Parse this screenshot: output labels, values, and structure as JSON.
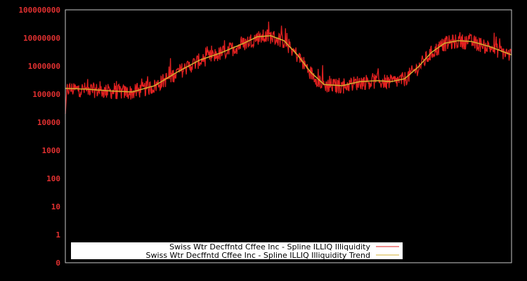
{
  "chart_data": {
    "type": "line",
    "title": "",
    "xlabel": "",
    "ylabel": "",
    "yscale": "log",
    "y_tick_labels": [
      "100000000",
      "10000000",
      "1000000",
      "100000",
      "10000",
      "1000",
      "100",
      "10",
      "1",
      "0"
    ],
    "ylim": [
      0,
      100000000
    ],
    "grid": false,
    "legend_position": "lower center",
    "background": "#000000",
    "series": [
      {
        "name": "Swiss Wtr Decffntd Cffee Inc - Spline ILLIQ Illiquidity",
        "color": "#e02020",
        "description": "noisy daily series, log scale",
        "approx_points": [
          [
            0.0,
            20000
          ],
          [
            0.01,
            150000
          ],
          [
            0.03,
            180000
          ],
          [
            0.05,
            120000
          ],
          [
            0.08,
            140000
          ],
          [
            0.11,
            80000
          ],
          [
            0.13,
            90000
          ],
          [
            0.15,
            100000
          ],
          [
            0.18,
            180000
          ],
          [
            0.21,
            300000
          ],
          [
            0.24,
            600000
          ],
          [
            0.27,
            1200000
          ],
          [
            0.3,
            2000000
          ],
          [
            0.33,
            2500000
          ],
          [
            0.36,
            3000000
          ],
          [
            0.39,
            5000000
          ],
          [
            0.42,
            10000000
          ],
          [
            0.44,
            12000000
          ],
          [
            0.46,
            8000000
          ],
          [
            0.48,
            7000000
          ],
          [
            0.5,
            4000000
          ],
          [
            0.52,
            2000000
          ],
          [
            0.54,
            900000
          ],
          [
            0.56,
            250000
          ],
          [
            0.58,
            150000
          ],
          [
            0.61,
            200000
          ],
          [
            0.64,
            250000
          ],
          [
            0.67,
            300000
          ],
          [
            0.7,
            250000
          ],
          [
            0.73,
            250000
          ],
          [
            0.76,
            500000
          ],
          [
            0.79,
            1000000
          ],
          [
            0.82,
            3000000
          ],
          [
            0.84,
            8000000
          ],
          [
            0.86,
            9000000
          ],
          [
            0.89,
            8000000
          ],
          [
            0.92,
            6000000
          ],
          [
            0.95,
            4000000
          ],
          [
            0.98,
            2500000
          ],
          [
            1.0,
            4000000
          ]
        ]
      },
      {
        "name": "Swiss Wtr Decffntd Cffee Inc - Spline ILLIQ Illiquidity Trend",
        "color": "#d4b030",
        "description": "smooth spline trend",
        "approx_points": [
          [
            0.0,
            160000
          ],
          [
            0.05,
            150000
          ],
          [
            0.1,
            130000
          ],
          [
            0.15,
            120000
          ],
          [
            0.2,
            200000
          ],
          [
            0.25,
            600000
          ],
          [
            0.3,
            1600000
          ],
          [
            0.35,
            3000000
          ],
          [
            0.4,
            6500000
          ],
          [
            0.43,
            11000000
          ],
          [
            0.46,
            12000000
          ],
          [
            0.49,
            8000000
          ],
          [
            0.52,
            2500000
          ],
          [
            0.55,
            600000
          ],
          [
            0.58,
            220000
          ],
          [
            0.62,
            200000
          ],
          [
            0.66,
            280000
          ],
          [
            0.7,
            300000
          ],
          [
            0.73,
            280000
          ],
          [
            0.76,
            350000
          ],
          [
            0.79,
            900000
          ],
          [
            0.82,
            3000000
          ],
          [
            0.85,
            6500000
          ],
          [
            0.88,
            8000000
          ],
          [
            0.91,
            7500000
          ],
          [
            0.95,
            5000000
          ],
          [
            1.0,
            2500000
          ]
        ]
      }
    ]
  },
  "legend": {
    "items": [
      {
        "label": "Swiss Wtr Decffntd Cffee Inc - Spline ILLIQ Illiquidity",
        "color": "#e02020"
      },
      {
        "label": "Swiss Wtr Decffntd Cffee Inc - Spline ILLIQ Illiquidity Trend",
        "color": "#d4b030"
      }
    ]
  }
}
